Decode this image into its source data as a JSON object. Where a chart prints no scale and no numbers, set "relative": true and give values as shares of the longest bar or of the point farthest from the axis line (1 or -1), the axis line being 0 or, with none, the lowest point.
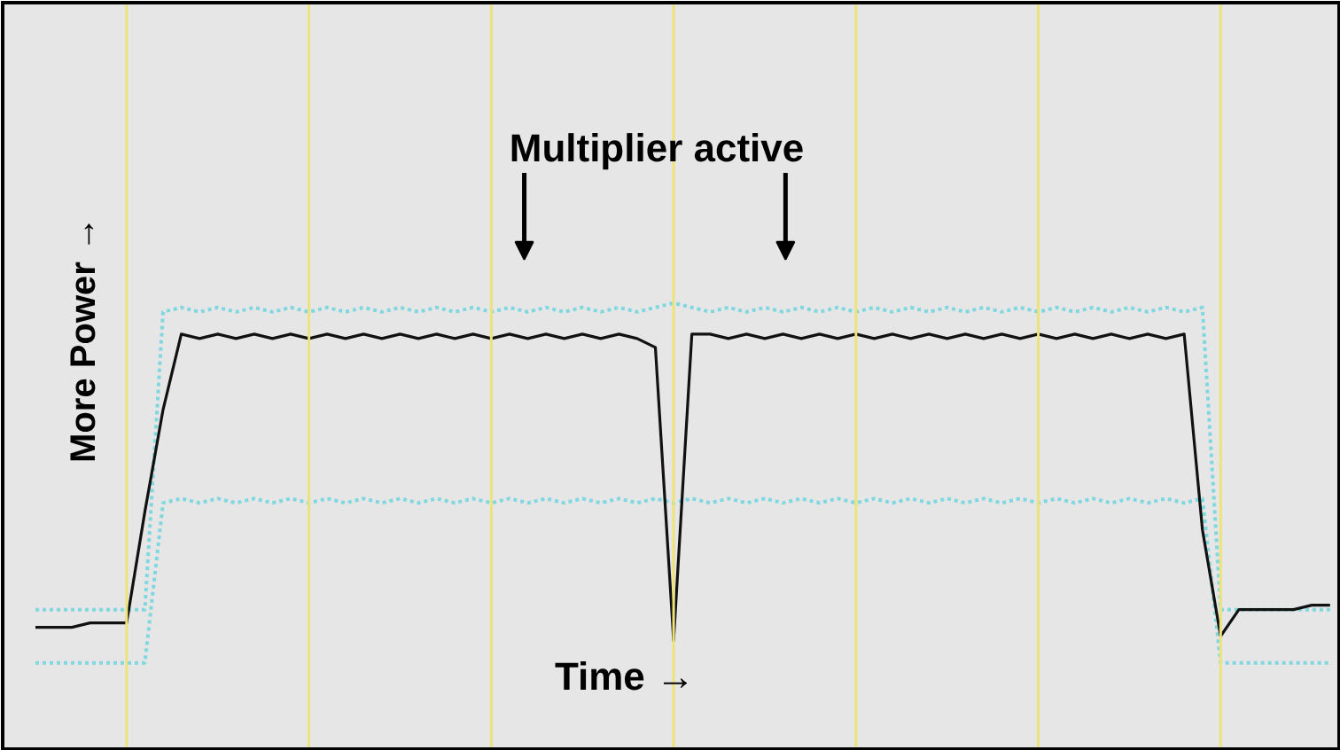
{
  "chart_data": {
    "type": "line",
    "relative": true,
    "xlabel": "Time →",
    "ylabel": "More Power →",
    "annotations": [
      "Multiplier active"
    ],
    "grid": "x",
    "tick_labels": false,
    "categories": [
      null,
      null,
      null,
      null,
      null,
      null,
      null,
      null,
      null,
      null,
      null,
      null,
      null,
      null,
      null,
      null,
      null,
      null,
      null,
      null,
      null,
      null,
      null,
      null,
      null,
      null,
      null,
      null,
      null,
      null,
      null,
      null,
      null,
      null,
      null,
      null,
      null,
      null,
      null,
      null,
      null,
      null,
      null,
      null,
      null,
      null,
      null,
      null,
      null,
      null,
      null,
      null,
      null,
      null,
      null,
      null,
      null,
      null,
      null,
      null,
      null,
      null,
      null,
      null,
      null,
      null,
      null,
      null,
      null,
      null,
      null,
      null
    ],
    "series": [
      {
        "color": "#7fd8e0",
        "line_style": "dotted",
        "values": [
          0.31,
          0.31,
          0.31,
          0.31,
          0.31,
          0.31,
          0.31,
          0.98,
          0.99,
          0.98,
          0.99,
          0.98,
          0.99,
          0.98,
          0.99,
          0.98,
          0.99,
          0.98,
          0.99,
          0.98,
          0.99,
          0.98,
          0.99,
          0.98,
          0.99,
          0.98,
          0.99,
          0.98,
          0.99,
          0.98,
          0.99,
          0.98,
          0.99,
          0.98,
          0.99,
          1.0,
          0.99,
          0.98,
          0.99,
          0.98,
          0.99,
          0.98,
          0.99,
          0.98,
          0.99,
          0.98,
          0.99,
          0.98,
          0.99,
          0.98,
          0.99,
          0.98,
          0.99,
          0.98,
          0.99,
          0.98,
          0.99,
          0.98,
          0.99,
          0.98,
          0.99,
          0.98,
          0.99,
          0.98,
          0.99,
          0.31,
          0.31,
          0.31,
          0.31,
          0.31,
          0.31,
          0.31
        ]
      },
      {
        "color": "#7fd8e0",
        "line_style": "dotted",
        "values": [
          0.19,
          0.19,
          0.19,
          0.19,
          0.19,
          0.19,
          0.19,
          0.55,
          0.56,
          0.55,
          0.56,
          0.55,
          0.56,
          0.55,
          0.56,
          0.55,
          0.56,
          0.55,
          0.56,
          0.55,
          0.56,
          0.55,
          0.56,
          0.55,
          0.56,
          0.55,
          0.56,
          0.55,
          0.56,
          0.55,
          0.56,
          0.55,
          0.56,
          0.55,
          0.56,
          0.55,
          0.56,
          0.55,
          0.56,
          0.55,
          0.56,
          0.55,
          0.56,
          0.55,
          0.56,
          0.55,
          0.56,
          0.55,
          0.56,
          0.55,
          0.56,
          0.55,
          0.56,
          0.55,
          0.56,
          0.55,
          0.56,
          0.55,
          0.56,
          0.55,
          0.56,
          0.55,
          0.56,
          0.55,
          0.56,
          0.19,
          0.19,
          0.19,
          0.19,
          0.19,
          0.19,
          0.19
        ]
      },
      {
        "color": "#111111",
        "line_style": "solid",
        "values": [
          0.27,
          0.27,
          0.27,
          0.28,
          0.28,
          0.28,
          0.53,
          0.76,
          0.93,
          0.92,
          0.93,
          0.92,
          0.93,
          0.92,
          0.93,
          0.92,
          0.93,
          0.92,
          0.93,
          0.92,
          0.93,
          0.92,
          0.93,
          0.92,
          0.93,
          0.92,
          0.93,
          0.92,
          0.93,
          0.92,
          0.93,
          0.92,
          0.93,
          0.92,
          0.9,
          0.24,
          0.93,
          0.93,
          0.92,
          0.93,
          0.92,
          0.93,
          0.92,
          0.93,
          0.92,
          0.93,
          0.92,
          0.93,
          0.92,
          0.93,
          0.92,
          0.93,
          0.92,
          0.93,
          0.92,
          0.93,
          0.92,
          0.93,
          0.92,
          0.93,
          0.92,
          0.93,
          0.92,
          0.93,
          0.49,
          0.25,
          0.31,
          0.31,
          0.31,
          0.31,
          0.32,
          0.32
        ]
      }
    ]
  }
}
